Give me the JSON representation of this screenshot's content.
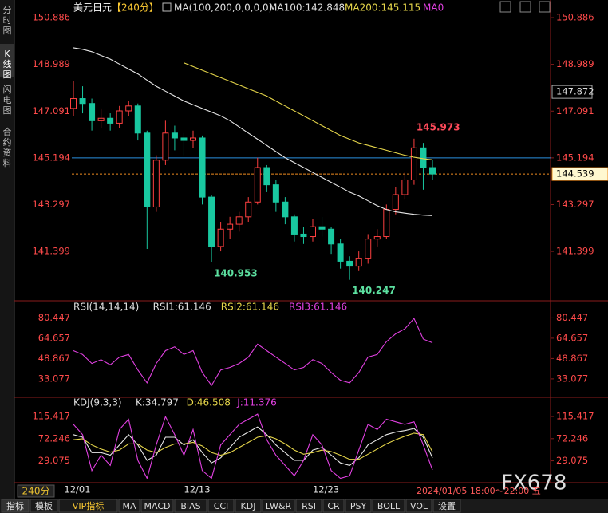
{
  "header": {
    "symbol": "美元日元",
    "period": "【240分】",
    "ma_setting": "MA(100,200,0,0,0,0)",
    "ma100_label": "MA100:142.848",
    "ma200_label": "MA200:145.115",
    "ma0_label": "MA0"
  },
  "side_tabs": [
    "分时图",
    "K线图",
    "闪电图",
    "合约资料"
  ],
  "toolbar": [
    "指标",
    "模板",
    "VIP指标",
    "MA",
    "MACD",
    "BIAS",
    "CCI",
    "KDJ",
    "LW&R",
    "RSI",
    "CR",
    "PSY",
    "BOLL",
    "VOL",
    "设置"
  ],
  "period_badge": "240分",
  "cursor_time": "2024/01/05 18:00～22:00 五",
  "watermark": "FX678",
  "chart_data": [
    {
      "type": "candlestick",
      "categories": [
        "12/01",
        null,
        null,
        null,
        null,
        null,
        null,
        null,
        null,
        null,
        null,
        null,
        null,
        "12/13",
        null,
        null,
        null,
        null,
        null,
        null,
        null,
        null,
        null,
        null,
        null,
        null,
        null,
        "12/23",
        null,
        null,
        null,
        null,
        null,
        null,
        null,
        null,
        null,
        null,
        null,
        null
      ],
      "open": [
        147.2,
        147.6,
        147.4,
        146.7,
        146.8,
        146.6,
        147.1,
        147.3,
        146.2,
        143.2,
        145.1,
        146.2,
        146.0,
        145.9,
        146.0,
        143.6,
        141.6,
        142.3,
        142.5,
        142.8,
        143.4,
        144.8,
        144.1,
        143.4,
        142.8,
        142.1,
        142.0,
        142.4,
        142.3,
        141.7,
        141.0,
        140.8,
        141.1,
        141.9,
        142.0,
        143.1,
        143.7,
        144.3,
        145.6,
        144.8
      ],
      "high": [
        148.3,
        148.1,
        147.6,
        147.2,
        147.0,
        147.3,
        147.5,
        147.4,
        146.3,
        145.3,
        146.7,
        146.5,
        146.2,
        146.3,
        146.1,
        143.7,
        142.6,
        142.8,
        143.0,
        143.6,
        145.2,
        144.9,
        144.3,
        143.6,
        142.9,
        142.4,
        142.7,
        142.8,
        142.4,
        141.9,
        141.2,
        141.4,
        142.1,
        142.3,
        143.3,
        144.0,
        144.6,
        145.973,
        145.8,
        145.1
      ],
      "low": [
        146.9,
        147.0,
        146.3,
        146.4,
        146.3,
        146.4,
        146.9,
        145.9,
        141.5,
        143.0,
        144.9,
        145.5,
        145.3,
        145.6,
        143.3,
        140.953,
        141.4,
        141.9,
        142.2,
        142.6,
        143.3,
        143.8,
        143.0,
        142.5,
        141.8,
        141.7,
        141.8,
        142.0,
        141.3,
        140.7,
        140.247,
        140.6,
        140.9,
        141.6,
        141.9,
        142.9,
        143.5,
        144.1,
        143.9,
        144.3
      ],
      "close": [
        147.6,
        147.4,
        146.7,
        146.8,
        146.6,
        147.1,
        147.3,
        146.2,
        143.2,
        145.1,
        146.2,
        146.0,
        145.9,
        146.0,
        143.6,
        141.6,
        142.3,
        142.5,
        142.8,
        143.4,
        144.8,
        144.1,
        143.4,
        142.8,
        142.1,
        142.0,
        142.4,
        142.3,
        141.7,
        141.0,
        140.8,
        141.1,
        141.9,
        142.0,
        143.1,
        143.7,
        144.3,
        145.6,
        144.8,
        144.539
      ],
      "up_color": "#ff4040",
      "down_color": "#19c8a0",
      "series": [
        {
          "name": "MA100",
          "color": "#e8e8e8",
          "values": [
            149.66,
            149.6,
            149.5,
            149.35,
            149.2,
            149.0,
            148.8,
            148.6,
            148.35,
            148.1,
            147.9,
            147.7,
            147.5,
            147.35,
            147.2,
            147.05,
            146.9,
            146.7,
            146.45,
            146.2,
            145.95,
            145.7,
            145.45,
            145.2,
            145.0,
            144.8,
            144.6,
            144.4,
            144.2,
            144.0,
            143.8,
            143.65,
            143.45,
            143.25,
            143.1,
            143.0,
            142.95,
            142.9,
            142.87,
            142.848
          ]
        },
        {
          "name": "MA200",
          "color": "#e6d64a",
          "values": [
            null,
            null,
            null,
            null,
            null,
            null,
            null,
            null,
            null,
            null,
            null,
            null,
            149.05,
            148.9,
            148.75,
            148.6,
            148.45,
            148.3,
            148.15,
            148.0,
            147.85,
            147.7,
            147.5,
            147.3,
            147.1,
            146.9,
            146.7,
            146.5,
            146.3,
            146.1,
            145.95,
            145.8,
            145.7,
            145.6,
            145.5,
            145.4,
            145.3,
            145.22,
            145.16,
            145.115
          ]
        }
      ],
      "ylim": [
        139.46,
        151.34
      ],
      "yticks": [
        150.886,
        148.989,
        147.091,
        145.194,
        143.297,
        141.399
      ],
      "annotations": [
        {
          "index": 37,
          "value": 145.973,
          "color": "#ff4a5a"
        },
        {
          "index": 15,
          "value": 140.953,
          "color": "#5ce0a0"
        },
        {
          "index": 30,
          "value": 140.247,
          "color": "#5ce0a0"
        }
      ],
      "drawn_line": 145.194,
      "current_price": 144.539,
      "cursor_price": 147.872
    },
    {
      "type": "line",
      "title": "RSI(14,14,14)",
      "readouts": [
        {
          "label": "RSI1:61.146",
          "color": "#e0e0e0"
        },
        {
          "label": "RSI2:61.146",
          "color": "#e6d64a"
        },
        {
          "label": "RSI3:61.146",
          "color": "#e040e0"
        }
      ],
      "series": [
        {
          "name": "RSI",
          "color": "#e040e0",
          "values": [
            55,
            52,
            45,
            48,
            44,
            50,
            52,
            40,
            30,
            45,
            55,
            58,
            52,
            55,
            38,
            28,
            40,
            42,
            45,
            50,
            60,
            55,
            50,
            45,
            40,
            42,
            48,
            45,
            38,
            32,
            30,
            38,
            50,
            52,
            62,
            68,
            72,
            80,
            64,
            61.146
          ]
        }
      ],
      "ylim": [
        20,
        90
      ],
      "yticks": [
        80.447,
        64.657,
        48.867,
        33.077
      ]
    },
    {
      "type": "line",
      "title": "KDJ(9,3,3)",
      "readouts": [
        {
          "label": "K:34.797",
          "color": "#e0e0e0"
        },
        {
          "label": "D:46.508",
          "color": "#e6d64a"
        },
        {
          "label": "J:11.376",
          "color": "#e040e0"
        }
      ],
      "series": [
        {
          "name": "K",
          "color": "#e8e8e8",
          "values": [
            80,
            75,
            45,
            45,
            40,
            60,
            80,
            60,
            30,
            40,
            75,
            75,
            60,
            70,
            45,
            25,
            35,
            55,
            75,
            85,
            95,
            80,
            60,
            45,
            30,
            30,
            50,
            55,
            40,
            25,
            20,
            35,
            60,
            70,
            80,
            85,
            88,
            92,
            75,
            34.797
          ]
        },
        {
          "name": "D",
          "color": "#e6d64a",
          "values": [
            70,
            72,
            60,
            52,
            46,
            50,
            62,
            62,
            50,
            45,
            55,
            62,
            62,
            65,
            58,
            45,
            40,
            45,
            55,
            65,
            75,
            78,
            72,
            62,
            50,
            42,
            45,
            50,
            47,
            40,
            32,
            32,
            42,
            52,
            62,
            70,
            77,
            83,
            80,
            46.508
          ]
        },
        {
          "name": "J",
          "color": "#e040e0",
          "values": [
            100,
            80,
            10,
            40,
            20,
            90,
            110,
            30,
            -5,
            60,
            115,
            80,
            40,
            90,
            10,
            -5,
            60,
            80,
            100,
            110,
            120,
            70,
            40,
            20,
            0,
            30,
            80,
            60,
            10,
            -5,
            0,
            50,
            100,
            90,
            110,
            105,
            100,
            105,
            60,
            11.376
          ]
        }
      ],
      "ylim": [
        -12,
        145
      ],
      "yticks": [
        115.417,
        72.246,
        29.075
      ]
    }
  ]
}
